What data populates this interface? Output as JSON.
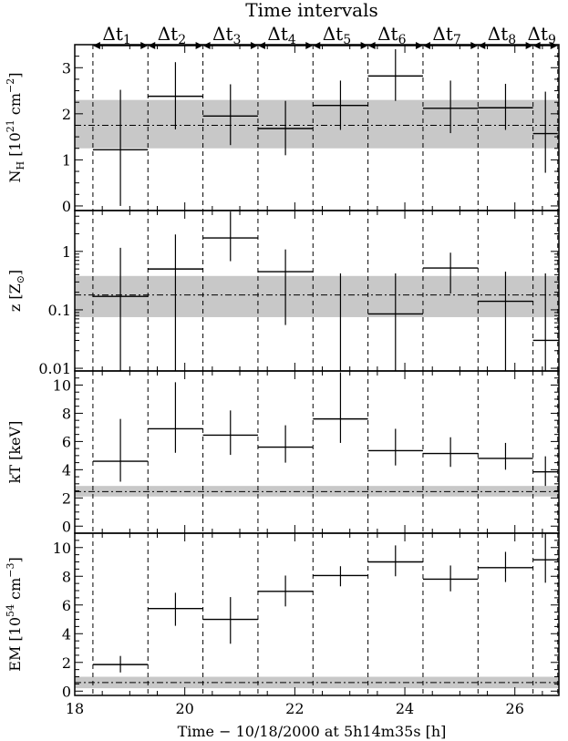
{
  "title": "Time intervals",
  "xlabel": "Time − 10/18/2000 at 5h14m35s [h]",
  "interval_labels": [
    {
      "d": "Δt",
      "s": "1"
    },
    {
      "d": "Δt",
      "s": "2"
    },
    {
      "d": "Δt",
      "s": "3"
    },
    {
      "d": "Δt",
      "s": "4"
    },
    {
      "d": "Δt",
      "s": "5"
    },
    {
      "d": "Δt",
      "s": "6"
    },
    {
      "d": "Δt",
      "s": "7"
    },
    {
      "d": "Δt",
      "s": "8"
    },
    {
      "d": "Δt",
      "s": "9"
    }
  ],
  "interval_boundaries": [
    18.33,
    19.33,
    20.33,
    21.33,
    22.33,
    23.33,
    24.33,
    25.33,
    26.33,
    26.78
  ],
  "xlim": [
    18,
    26.8
  ],
  "xticks": [
    18,
    20,
    22,
    24,
    26
  ],
  "panels": [
    {
      "id": "nh",
      "ylabel_main": "N",
      "ylabel_sub": "H",
      "ylabel_rest": " [10",
      "ylabel_sup": "21",
      "ylabel_end": " cm",
      "ylabel_sup2": "−2",
      "ylabel_close": "]",
      "scale": "linear",
      "ylim": [
        -0.1,
        3.5
      ],
      "yticks": [
        0,
        1,
        2,
        3
      ],
      "band": [
        1.25,
        2.3
      ],
      "mean": 1.75
    },
    {
      "id": "z",
      "ylabel_main": "z [Z",
      "ylabel_sub": "⊙",
      "ylabel_close": "]",
      "scale": "log",
      "ylim": [
        0.009,
        5
      ],
      "yticks": [
        0.01,
        0.1,
        1
      ],
      "ytick_labels": [
        "0.01",
        "0.1",
        "1"
      ],
      "band": [
        0.075,
        0.38
      ],
      "mean": 0.18
    },
    {
      "id": "kt",
      "ylabel_main": "kT [keV]",
      "scale": "linear",
      "ylim": [
        -0.5,
        11
      ],
      "yticks": [
        0,
        2,
        4,
        6,
        8,
        10
      ],
      "band": [
        2.1,
        2.85
      ],
      "mean": 2.45
    },
    {
      "id": "em",
      "ylabel_main": "EM [10",
      "ylabel_sup": "54",
      "ylabel_end": " cm",
      "ylabel_sup2": "−3",
      "ylabel_close": "]",
      "scale": "linear",
      "ylim": [
        -0.3,
        11
      ],
      "yticks": [
        0,
        2,
        4,
        6,
        8,
        10
      ],
      "band": [
        0.2,
        1.0
      ],
      "mean": 0.6
    }
  ],
  "chart_data": {
    "type": "scatter",
    "title": "Time intervals",
    "xlabel": "Time − 10/18/2000 at 5h14m35s [h]",
    "x_intervals": [
      [
        18.33,
        19.33
      ],
      [
        19.33,
        20.33
      ],
      [
        20.33,
        21.33
      ],
      [
        21.33,
        22.33
      ],
      [
        22.33,
        23.33
      ],
      [
        23.33,
        24.33
      ],
      [
        24.33,
        25.33
      ],
      [
        25.33,
        26.33
      ],
      [
        26.33,
        26.78
      ]
    ],
    "series": [
      {
        "name": "N_H [10^21 cm^-2]",
        "values": [
          1.22,
          2.38,
          1.95,
          1.68,
          2.18,
          2.82,
          2.12,
          2.13,
          1.57
        ],
        "lo": [
          0.0,
          1.66,
          1.32,
          1.1,
          1.65,
          2.28,
          1.58,
          1.65,
          0.72
        ],
        "hi": [
          2.52,
          3.12,
          2.64,
          2.28,
          2.72,
          3.4,
          2.72,
          2.65,
          2.48
        ]
      },
      {
        "name": "z [Z_sun]",
        "values": [
          0.17,
          0.5,
          1.7,
          0.45,
          0.0,
          0.085,
          0.52,
          0.14,
          0.03
        ],
        "lo": [
          0.009,
          0.009,
          0.68,
          0.055,
          0.009,
          0.009,
          0.19,
          0.009,
          0.009
        ],
        "hi": [
          1.15,
          1.95,
          4.8,
          1.08,
          0.42,
          0.42,
          0.95,
          0.45,
          0.42
        ]
      },
      {
        "name": "kT [keV]",
        "values": [
          4.6,
          6.9,
          6.45,
          5.6,
          7.6,
          5.35,
          5.15,
          4.8,
          3.85
        ],
        "lo": [
          3.15,
          5.2,
          5.05,
          4.5,
          5.9,
          4.3,
          4.2,
          4.0,
          2.85
        ],
        "hi": [
          7.6,
          10.2,
          8.2,
          7.15,
          10.9,
          6.9,
          6.3,
          5.9,
          4.95
        ]
      },
      {
        "name": "EM [10^54 cm^-3]",
        "values": [
          1.85,
          5.75,
          5.0,
          6.95,
          8.05,
          9.0,
          7.8,
          8.6,
          9.15
        ],
        "lo": [
          1.3,
          4.55,
          3.3,
          5.9,
          7.3,
          8.0,
          6.95,
          7.6,
          7.55
        ],
        "hi": [
          2.45,
          6.85,
          6.55,
          8.05,
          8.7,
          10.15,
          8.75,
          9.7,
          11.0
        ]
      }
    ]
  }
}
